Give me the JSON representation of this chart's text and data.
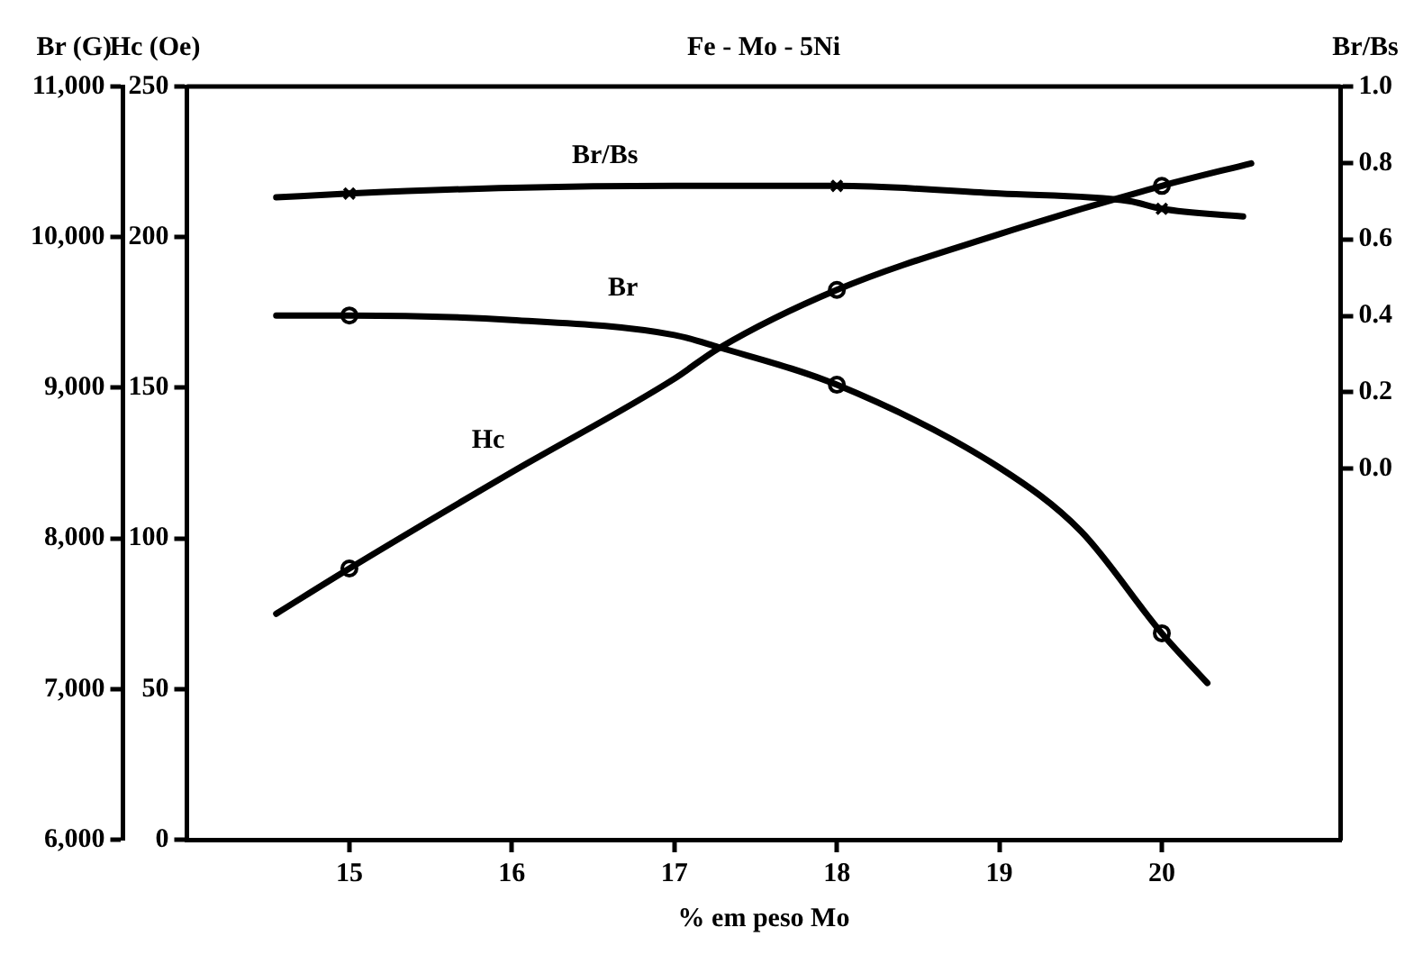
{
  "chart_data": {
    "type": "line",
    "title": "Fe - Mo - 5Ni",
    "xlabel": "% em peso Mo",
    "ylabel": "Br (G)",
    "y2label": "Hc (Oe)",
    "y3label": "Br/Bs",
    "xlim": [
      14,
      21.1
    ],
    "xticks": [
      15,
      16,
      17,
      18,
      19,
      20
    ],
    "ylim": [
      6000,
      11000
    ],
    "yticks": [
      {
        "value": 6000,
        "label": "6,000"
      },
      {
        "value": 7000,
        "label": "7,000"
      },
      {
        "value": 8000,
        "label": "8,000"
      },
      {
        "value": 9000,
        "label": "9,000"
      },
      {
        "value": 10000,
        "label": "10,000"
      },
      {
        "value": 11000,
        "label": "11,000"
      }
    ],
    "y2lim": [
      0,
      250
    ],
    "y2ticks": [
      0,
      50,
      100,
      150,
      200,
      250
    ],
    "y3lim": [
      -0.97,
      1.0
    ],
    "y3ticks": [
      {
        "value": 0,
        "label": "0.0"
      },
      {
        "value": 0.2,
        "label": "0.2"
      },
      {
        "value": 0.4,
        "label": "0.4"
      },
      {
        "value": 0.6,
        "label": "0.6"
      },
      {
        "value": 0.8,
        "label": "0.8"
      },
      {
        "value": 1,
        "label": "1.0"
      }
    ],
    "grid": false,
    "legend": false,
    "series": [
      {
        "name": "Br/Bs",
        "type": "line",
        "axis": "y3",
        "color": "#000000",
        "marker": "none",
        "x": [
          14.55,
          15,
          16,
          17,
          18,
          19,
          19.8,
          20,
          20.5
        ],
        "values": [
          0.71,
          0.72,
          0.735,
          0.74,
          0.74,
          0.72,
          0.7,
          0.68,
          0.66
        ]
      },
      {
        "name": "Br",
        "type": "line",
        "axis": "y",
        "color": "#000000",
        "marker": "none",
        "x": [
          14.55,
          15,
          16,
          17,
          17.27,
          18,
          19,
          19.5,
          20,
          20.28
        ],
        "values": [
          9480,
          9480,
          9450,
          9350,
          9270,
          9020,
          8470,
          8050,
          7370,
          7040
        ]
      },
      {
        "name": "Hc",
        "type": "line",
        "axis": "y2",
        "color": "#000000",
        "marker": "none",
        "x": [
          14.55,
          15,
          16,
          17,
          17.27,
          18,
          19,
          20,
          20.55
        ],
        "values": [
          75,
          90,
          122,
          153,
          163,
          182.5,
          201,
          217,
          224.5
        ]
      },
      {
        "type": "scatter",
        "axis": "y3",
        "color": "#000000",
        "marker": "cross",
        "x": [
          15,
          18,
          20
        ],
        "values": [
          0.72,
          0.74,
          0.68
        ]
      },
      {
        "type": "scatter",
        "axis": "y",
        "color": "#000000",
        "marker": "circle",
        "x": [
          15,
          18,
          20
        ],
        "values": [
          9480,
          9020,
          7370
        ]
      },
      {
        "type": "scatter",
        "axis": "y2",
        "color": "#000000",
        "marker": "circle",
        "x": [
          15,
          18,
          20
        ],
        "values": [
          90,
          182.5,
          217
        ]
      }
    ]
  }
}
